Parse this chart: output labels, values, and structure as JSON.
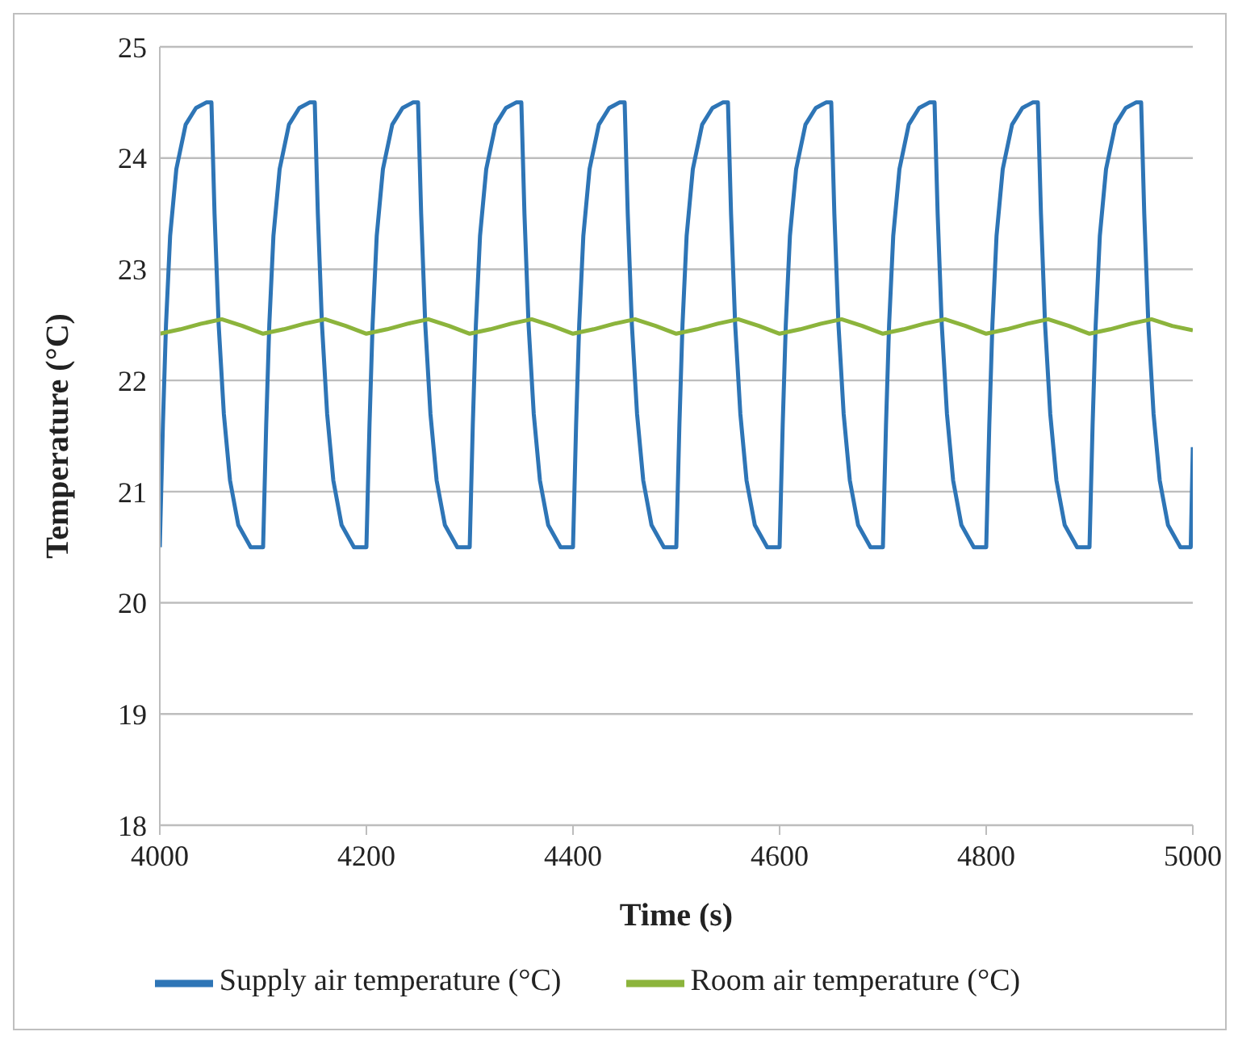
{
  "chart_data": {
    "type": "line",
    "xlabel": "Time (s)",
    "ylabel": "Temperature (°C)",
    "xlim": [
      4000,
      5000
    ],
    "xticks": [
      4000,
      4200,
      4400,
      4600,
      4800,
      5000
    ],
    "ylim": [
      18,
      25
    ],
    "yticks": [
      18,
      19,
      20,
      21,
      22,
      23,
      24,
      25
    ],
    "grid": "y",
    "legend": "bottom",
    "marker": "none",
    "line_style": "solid",
    "series": [
      {
        "name": "Supply air temperature (°C)",
        "color": "#2e75b6",
        "x": [
          4000,
          4003,
          4006,
          4010,
          4016,
          4025,
          4035,
          4045,
          4050,
          4053,
          4057,
          4062,
          4068,
          4076,
          4088,
          4100,
          4103,
          4106,
          4110,
          4116,
          4125,
          4135,
          4145,
          4150,
          4153,
          4157,
          4162,
          4168,
          4176,
          4188,
          4200,
          4203,
          4206,
          4210,
          4216,
          4225,
          4235,
          4245,
          4250,
          4253,
          4257,
          4262,
          4268,
          4276,
          4288,
          4300,
          4303,
          4306,
          4310,
          4316,
          4325,
          4335,
          4345,
          4350,
          4353,
          4357,
          4362,
          4368,
          4376,
          4388,
          4400,
          4403,
          4406,
          4410,
          4416,
          4425,
          4435,
          4445,
          4450,
          4453,
          4457,
          4462,
          4468,
          4476,
          4488,
          4500,
          4503,
          4506,
          4510,
          4516,
          4525,
          4535,
          4545,
          4550,
          4553,
          4557,
          4562,
          4568,
          4576,
          4588,
          4600,
          4603,
          4606,
          4610,
          4616,
          4625,
          4635,
          4645,
          4650,
          4653,
          4657,
          4662,
          4668,
          4676,
          4688,
          4700,
          4703,
          4706,
          4710,
          4716,
          4725,
          4735,
          4745,
          4750,
          4753,
          4757,
          4762,
          4768,
          4776,
          4788,
          4800,
          4803,
          4806,
          4810,
          4816,
          4825,
          4835,
          4845,
          4850,
          4853,
          4857,
          4862,
          4868,
          4876,
          4888,
          4900,
          4903,
          4906,
          4910,
          4916,
          4925,
          4935,
          4945,
          4950,
          4953,
          4957,
          4962,
          4968,
          4976,
          4988,
          4998,
          5000
        ],
        "values": [
          20.5,
          21.6,
          22.5,
          23.3,
          23.9,
          24.3,
          24.45,
          24.5,
          24.5,
          23.5,
          22.5,
          21.7,
          21.1,
          20.7,
          20.5,
          20.5,
          21.6,
          22.5,
          23.3,
          23.9,
          24.3,
          24.45,
          24.5,
          24.5,
          23.5,
          22.5,
          21.7,
          21.1,
          20.7,
          20.5,
          20.5,
          21.6,
          22.5,
          23.3,
          23.9,
          24.3,
          24.45,
          24.5,
          24.5,
          23.5,
          22.5,
          21.7,
          21.1,
          20.7,
          20.5,
          20.5,
          21.6,
          22.5,
          23.3,
          23.9,
          24.3,
          24.45,
          24.5,
          24.5,
          23.5,
          22.5,
          21.7,
          21.1,
          20.7,
          20.5,
          20.5,
          21.6,
          22.5,
          23.3,
          23.9,
          24.3,
          24.45,
          24.5,
          24.5,
          23.5,
          22.5,
          21.7,
          21.1,
          20.7,
          20.5,
          20.5,
          21.6,
          22.5,
          23.3,
          23.9,
          24.3,
          24.45,
          24.5,
          24.5,
          23.5,
          22.5,
          21.7,
          21.1,
          20.7,
          20.5,
          20.5,
          21.6,
          22.5,
          23.3,
          23.9,
          24.3,
          24.45,
          24.5,
          24.5,
          23.5,
          22.5,
          21.7,
          21.1,
          20.7,
          20.5,
          20.5,
          21.6,
          22.5,
          23.3,
          23.9,
          24.3,
          24.45,
          24.5,
          24.5,
          23.5,
          22.5,
          21.7,
          21.1,
          20.7,
          20.5,
          20.5,
          21.6,
          22.5,
          23.3,
          23.9,
          24.3,
          24.45,
          24.5,
          24.5,
          23.5,
          22.5,
          21.7,
          21.1,
          20.7,
          20.5,
          20.5,
          21.6,
          22.5,
          23.3,
          23.9,
          24.3,
          24.45,
          24.5,
          24.5,
          23.5,
          22.5,
          21.7,
          21.1,
          20.7,
          20.5,
          20.5,
          21.4
        ]
      },
      {
        "name": "Room air temperature (°C)",
        "color": "#8cb43c",
        "x": [
          4000,
          4020,
          4040,
          4060,
          4080,
          4100,
          4120,
          4140,
          4160,
          4180,
          4200,
          4220,
          4240,
          4260,
          4280,
          4300,
          4320,
          4340,
          4360,
          4380,
          4400,
          4420,
          4440,
          4460,
          4480,
          4500,
          4520,
          4540,
          4560,
          4580,
          4600,
          4620,
          4640,
          4660,
          4680,
          4700,
          4720,
          4740,
          4760,
          4780,
          4800,
          4820,
          4840,
          4860,
          4880,
          4900,
          4920,
          4940,
          4960,
          4980,
          5000
        ],
        "values": [
          22.42,
          22.46,
          22.51,
          22.55,
          22.49,
          22.42,
          22.46,
          22.51,
          22.55,
          22.49,
          22.42,
          22.46,
          22.51,
          22.55,
          22.49,
          22.42,
          22.46,
          22.51,
          22.55,
          22.49,
          22.42,
          22.46,
          22.51,
          22.55,
          22.49,
          22.42,
          22.46,
          22.51,
          22.55,
          22.49,
          22.42,
          22.46,
          22.51,
          22.55,
          22.49,
          22.42,
          22.46,
          22.51,
          22.55,
          22.49,
          22.42,
          22.46,
          22.51,
          22.55,
          22.49,
          22.42,
          22.46,
          22.51,
          22.55,
          22.49,
          22.45
        ]
      }
    ]
  }
}
